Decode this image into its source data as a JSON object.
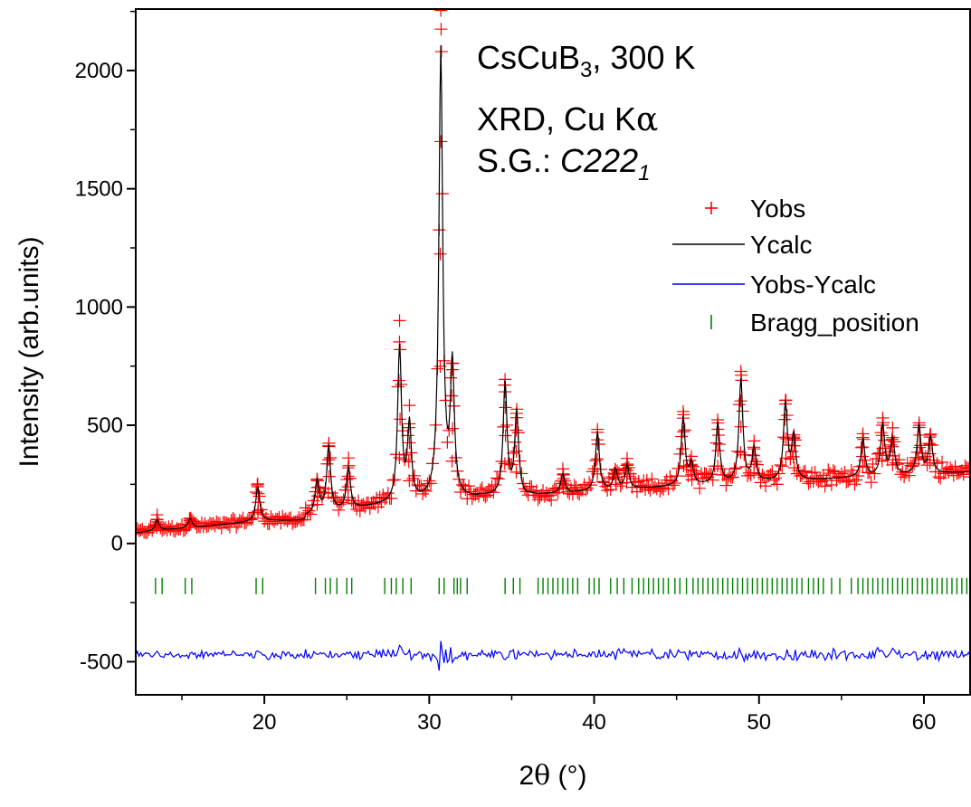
{
  "chart_data": {
    "type": "line",
    "xlabel_parts": [
      "2",
      "θ",
      " (°)"
    ],
    "ylabel": "Intensity (arb.units)",
    "xlim": [
      12.2,
      62.8
    ],
    "ylim": [
      -640,
      2260
    ],
    "x_ticks": [
      20,
      30,
      40,
      50,
      60
    ],
    "x_tick_labels": [
      "20",
      "30",
      "40",
      "50",
      "60"
    ],
    "y_ticks": [
      -500,
      0,
      500,
      1000,
      1500,
      2000
    ],
    "y_tick_labels": [
      "-500",
      "0",
      "500",
      "1000",
      "1500",
      "2000"
    ],
    "grid": false,
    "legend_position": "right",
    "annotations": {
      "line1": {
        "formula_base": "CsCuB",
        "formula_sub": "3",
        "rest": ", 300 K"
      },
      "line2": {
        "prefix": "XRD, Cu K",
        "greek": "α"
      },
      "line3": {
        "prefix": "S.G.: ",
        "group": "C222",
        "group_sub": "1"
      }
    },
    "peaks": [
      {
        "x": 13.5,
        "y": 100
      },
      {
        "x": 15.5,
        "y": 105
      },
      {
        "x": 19.6,
        "y": 240
      },
      {
        "x": 23.2,
        "y": 265
      },
      {
        "x": 23.9,
        "y": 410
      },
      {
        "x": 25.1,
        "y": 320
      },
      {
        "x": 28.2,
        "y": 820
      },
      {
        "x": 28.8,
        "y": 490
      },
      {
        "x": 30.7,
        "y": 2080
      },
      {
        "x": 31.4,
        "y": 735
      },
      {
        "x": 34.6,
        "y": 670
      },
      {
        "x": 35.3,
        "y": 550
      },
      {
        "x": 38.1,
        "y": 290
      },
      {
        "x": 40.2,
        "y": 470
      },
      {
        "x": 41.3,
        "y": 310
      },
      {
        "x": 42.0,
        "y": 330
      },
      {
        "x": 45.4,
        "y": 530
      },
      {
        "x": 45.9,
        "y": 330
      },
      {
        "x": 47.5,
        "y": 510
      },
      {
        "x": 48.9,
        "y": 690
      },
      {
        "x": 49.7,
        "y": 400
      },
      {
        "x": 51.6,
        "y": 590
      },
      {
        "x": 52.1,
        "y": 450
      },
      {
        "x": 56.3,
        "y": 440
      },
      {
        "x": 57.5,
        "y": 500
      },
      {
        "x": 58.1,
        "y": 440
      },
      {
        "x": 59.7,
        "y": 500
      },
      {
        "x": 60.4,
        "y": 450
      }
    ],
    "bragg_positions": [
      13.4,
      13.8,
      15.2,
      15.6,
      19.5,
      19.9,
      23.1,
      23.7,
      24.0,
      24.4,
      25.0,
      25.3,
      27.3,
      27.7,
      28.0,
      28.4,
      28.9,
      30.6,
      30.9,
      31.5,
      31.7,
      31.9,
      32.3,
      34.6,
      35.1,
      35.5,
      36.6,
      36.9,
      37.2,
      37.5,
      37.8,
      38.1,
      38.4,
      38.7,
      39.0,
      39.7,
      40.0,
      40.3,
      41.0,
      41.4,
      41.8,
      42.3,
      42.7,
      43.0,
      43.3,
      43.6,
      43.9,
      44.2,
      44.5,
      44.9,
      45.2,
      45.6,
      46.0,
      46.3,
      46.6,
      46.9,
      47.2,
      47.5,
      47.8,
      48.1,
      48.4,
      48.7,
      49.0,
      49.3,
      49.6,
      49.9,
      50.2,
      50.5,
      50.8,
      51.1,
      51.4,
      51.7,
      52.0,
      52.3,
      52.6,
      53.0,
      53.3,
      53.6,
      53.9,
      54.4,
      54.9,
      55.6,
      56.0,
      56.3,
      56.6,
      56.9,
      57.2,
      57.5,
      57.8,
      58.1,
      58.4,
      58.7,
      59.0,
      59.3,
      59.6,
      59.9,
      60.2,
      60.5,
      60.8,
      61.1,
      61.4,
      61.7,
      62.0,
      62.3,
      62.6
    ],
    "bragg_offset": -180,
    "difference_offset": -470,
    "series": [
      {
        "name": "Yobs",
        "marker": "+",
        "color": "#ff0000"
      },
      {
        "name": "Ycalc",
        "line": "solid",
        "color": "#000000"
      },
      {
        "name": "Yobs-Ycalc",
        "line": "solid",
        "color": "#0000ff"
      },
      {
        "name": "Bragg_position",
        "marker": "|",
        "color": "#008000"
      }
    ]
  }
}
